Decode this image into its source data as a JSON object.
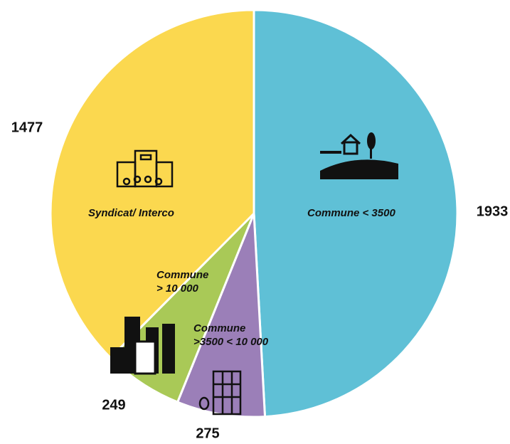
{
  "chart_data": {
    "type": "pie",
    "categories": [
      "Commune < 3500",
      "Commune\n>3500 < 10 000",
      "Commune\n> 10 000",
      "Syndicat/ Interco"
    ],
    "values": [
      1933,
      275,
      249,
      1477
    ],
    "colors": [
      "#5fc0d6",
      "#9b7fb8",
      "#a9c957",
      "#fbd84f"
    ]
  }
}
